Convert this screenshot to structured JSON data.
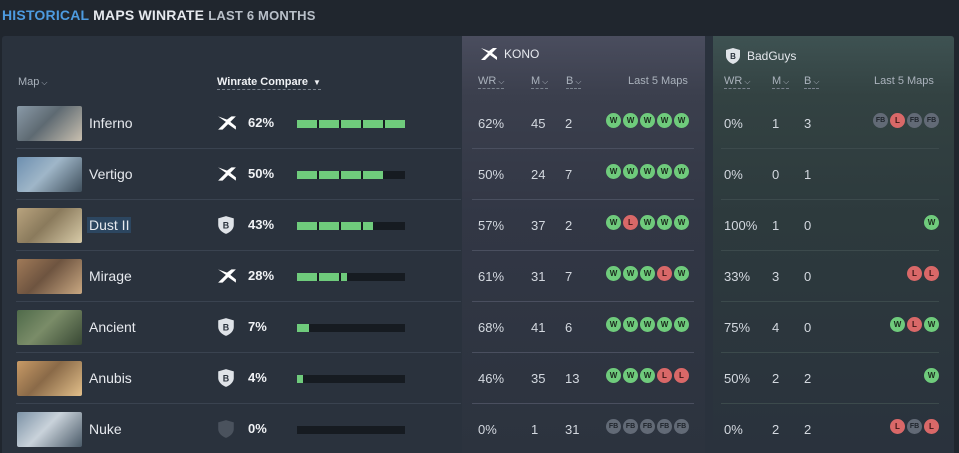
{
  "title": {
    "historical": "HISTORICAL",
    "maps_winrate": "MAPS WINRATE",
    "period": "LAST 6 MONTHS"
  },
  "headers": {
    "map": "Map",
    "winrate_compare": "Winrate Compare",
    "wr": "WR",
    "m": "M",
    "b": "B",
    "last5": "Last 5 Maps"
  },
  "teams": [
    {
      "name": "KONO",
      "icon": "kono-logo-icon",
      "color": "#4a4d5e"
    },
    {
      "name": "BadGuys",
      "icon": "badguys-shield-icon",
      "color": "#3e5252"
    }
  ],
  "colors": {
    "win": "#6fcb7c",
    "loss": "#d96868",
    "fb": "#626a76",
    "accent": "#4d9be0"
  },
  "rows": [
    {
      "map": "Inferno",
      "leader": "kono",
      "winrate": "62%",
      "fill": 1.0,
      "kono": {
        "wr": "62%",
        "m": "45",
        "b": "2",
        "last5": [
          "W",
          "W",
          "W",
          "W",
          "W"
        ]
      },
      "bad": {
        "wr": "0%",
        "m": "1",
        "b": "3",
        "last5": [
          "FB",
          "L",
          "FB",
          "FB"
        ]
      }
    },
    {
      "map": "Vertigo",
      "leader": "kono",
      "winrate": "50%",
      "fill": 0.8,
      "kono": {
        "wr": "50%",
        "m": "24",
        "b": "7",
        "last5": [
          "W",
          "W",
          "W",
          "W",
          "W"
        ]
      },
      "bad": {
        "wr": "0%",
        "m": "0",
        "b": "1",
        "last5": []
      }
    },
    {
      "map": "Dust II",
      "leader": "bad",
      "winrate": "43%",
      "fill": 0.7,
      "kono": {
        "wr": "57%",
        "m": "37",
        "b": "2",
        "last5": [
          "W",
          "L",
          "W",
          "W",
          "W"
        ]
      },
      "bad": {
        "wr": "100%",
        "m": "1",
        "b": "0",
        "last5": [
          "W"
        ]
      }
    },
    {
      "map": "Mirage",
      "leader": "kono",
      "winrate": "28%",
      "fill": 0.46,
      "kono": {
        "wr": "61%",
        "m": "31",
        "b": "7",
        "last5": [
          "W",
          "W",
          "W",
          "L",
          "W"
        ]
      },
      "bad": {
        "wr": "33%",
        "m": "3",
        "b": "0",
        "last5": [
          "L",
          "L"
        ]
      }
    },
    {
      "map": "Ancient",
      "leader": "bad",
      "winrate": "7%",
      "fill": 0.12,
      "kono": {
        "wr": "68%",
        "m": "41",
        "b": "6",
        "last5": [
          "W",
          "W",
          "W",
          "W",
          "W"
        ]
      },
      "bad": {
        "wr": "75%",
        "m": "4",
        "b": "0",
        "last5": [
          "W",
          "L",
          "W"
        ]
      }
    },
    {
      "map": "Anubis",
      "leader": "bad",
      "winrate": "4%",
      "fill": 0.06,
      "kono": {
        "wr": "46%",
        "m": "35",
        "b": "13",
        "last5": [
          "W",
          "W",
          "W",
          "L",
          "L"
        ]
      },
      "bad": {
        "wr": "50%",
        "m": "2",
        "b": "2",
        "last5": [
          "W"
        ]
      }
    },
    {
      "map": "Nuke",
      "leader": "none",
      "winrate": "0%",
      "fill": 0.0,
      "kono": {
        "wr": "0%",
        "m": "1",
        "b": "31",
        "last5": [
          "FB",
          "FB",
          "FB",
          "FB",
          "FB"
        ]
      },
      "bad": {
        "wr": "0%",
        "m": "2",
        "b": "2",
        "last5": [
          "L",
          "FB",
          "L"
        ]
      }
    }
  ]
}
